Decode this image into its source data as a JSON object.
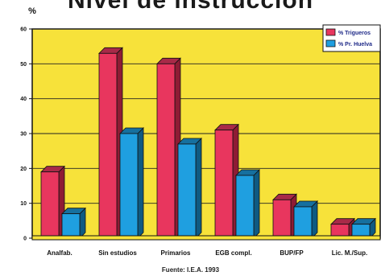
{
  "page": {
    "title": "Nivel de instrucción",
    "source": "Fuente: I.E.A. 1993"
  },
  "chart_data": {
    "type": "bar",
    "title": "Nivel de instrucción",
    "ylabel": "%",
    "xlabel": "",
    "ylim": [
      0,
      60
    ],
    "yticks": [
      0,
      10,
      20,
      30,
      40,
      50,
      60
    ],
    "grid": true,
    "legend_position": "top-right",
    "categories": [
      "Analfab.",
      "Sin estudios",
      "Primarios",
      "EGB compl.",
      "BUP/FP",
      "Lic. M./Sup."
    ],
    "series": [
      {
        "name": "% Trigueros",
        "values": [
          19,
          53,
          50,
          31,
          11,
          4
        ],
        "color": "#e8365e",
        "top_color": "#a82a48",
        "side_color": "#8e1c34"
      },
      {
        "name": "% Pr. Huelva",
        "values": [
          7,
          30,
          27,
          18,
          9,
          4
        ],
        "color": "#1f9fe0",
        "top_color": "#16709f",
        "side_color": "#0f5a82"
      }
    ],
    "plot_background": "#f7e23a"
  }
}
